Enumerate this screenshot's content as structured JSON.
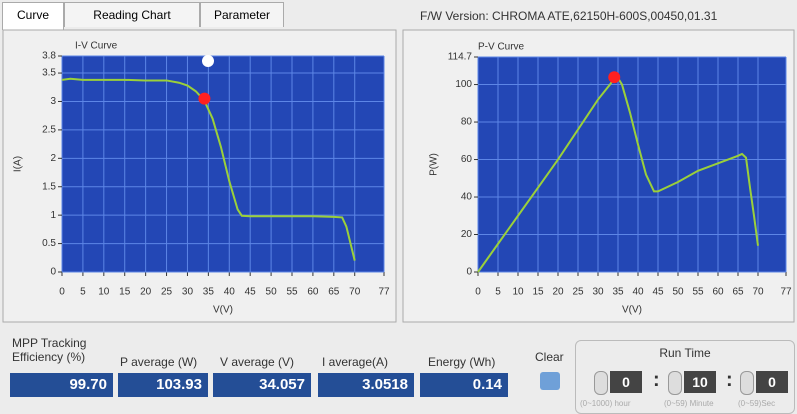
{
  "tabs": [
    "Curve",
    "Reading Chart",
    "Parameter"
  ],
  "firmware": "F/W Version: CHROMA ATE,62150H-600S,00450,01.31",
  "chart_data": [
    {
      "type": "line",
      "title": "I-V Curve",
      "x_label": "V(V)",
      "y_label": "I(A)",
      "x": [
        0,
        2,
        5,
        10,
        15,
        20,
        25,
        28,
        30,
        32,
        34,
        36,
        38,
        40,
        42,
        43,
        45,
        50,
        55,
        60,
        65,
        67,
        68,
        69,
        70
      ],
      "values": [
        3.38,
        3.4,
        3.38,
        3.38,
        3.38,
        3.37,
        3.37,
        3.33,
        3.28,
        3.18,
        3.02,
        2.7,
        2.2,
        1.6,
        1.1,
        0.99,
        0.98,
        0.98,
        0.98,
        0.98,
        0.97,
        0.96,
        0.8,
        0.5,
        0.2
      ],
      "color": "#9bd03a",
      "mpp": {
        "x": 34.06,
        "y": 3.05,
        "color": "#ff2020"
      },
      "xlim": [
        0,
        77
      ],
      "xticks": [
        0,
        5,
        10,
        15,
        20,
        25,
        30,
        35,
        40,
        45,
        50,
        55,
        60,
        65,
        70,
        77
      ],
      "ylim": [
        0,
        3.8
      ],
      "yticks": [
        0,
        0.5,
        1,
        1.5,
        2,
        2.5,
        3,
        3.5,
        3.8
      ],
      "grid": true
    },
    {
      "type": "line",
      "title": "P-V Curve",
      "x_label": "V(V)",
      "y_label": "P(W)",
      "x": [
        0,
        5,
        10,
        15,
        20,
        25,
        30,
        33,
        34,
        35,
        36,
        38,
        40,
        42,
        44,
        45,
        50,
        55,
        60,
        65,
        66,
        67,
        68,
        69,
        70
      ],
      "values": [
        0,
        15,
        30,
        45,
        60,
        76,
        92,
        100,
        103,
        103.5,
        100,
        85,
        68,
        52,
        43,
        43,
        48,
        54,
        58,
        62,
        63,
        61,
        45,
        30,
        14
      ],
      "color": "#9bd03a",
      "mpp": {
        "x": 34.06,
        "y": 103.93,
        "color": "#ff2020"
      },
      "xlim": [
        0,
        77
      ],
      "xticks": [
        0,
        5,
        10,
        15,
        20,
        25,
        30,
        35,
        40,
        45,
        50,
        55,
        60,
        65,
        70,
        77
      ],
      "ylim": [
        0,
        114.7
      ],
      "yticks": [
        0,
        20,
        40,
        60,
        80,
        100,
        114.7
      ],
      "grid": true
    }
  ],
  "readouts": [
    {
      "label": "MPP Tracking Efficiency (%)",
      "value": "99.70"
    },
    {
      "label": "P average  (W)",
      "value": "103.93"
    },
    {
      "label": "V average (V)",
      "value": "34.057"
    },
    {
      "label": "I average(A)",
      "value": "3.0518"
    },
    {
      "label": "Energy  (Wh)",
      "value": "0.14"
    }
  ],
  "clear": "Clear",
  "run_time": {
    "title": "Run Time",
    "fields": [
      {
        "value": "0",
        "hint": "(0~1000) hour"
      },
      {
        "value": "10",
        "hint": "(0~59) Minute"
      },
      {
        "value": "0",
        "hint": "(0~59)Sec"
      }
    ]
  }
}
